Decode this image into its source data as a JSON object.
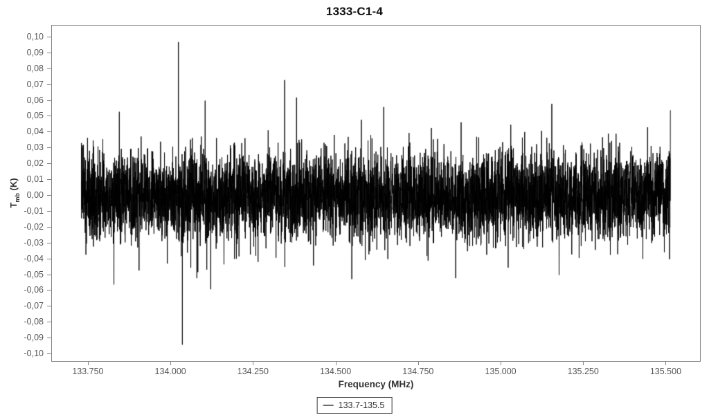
{
  "chart_data": {
    "type": "line",
    "title": "1333-C1-4",
    "xlabel": "Frequency (MHz)",
    "ylabel": {
      "main": "T",
      "sub": "mb",
      "unit": " (K)"
    },
    "legend": {
      "label": "133.7-135.5",
      "position": "bottom-center"
    },
    "series": [
      {
        "name": "133.7-135.5",
        "color": "#000000",
        "kind": "noise-spectrum"
      }
    ],
    "xlim": [
      133.639,
      135.606
    ],
    "ylim": [
      -0.1052,
      0.1074
    ],
    "x_range_data": [
      133.728,
      135.512
    ],
    "x_tick_values": [
      133.75,
      134.0,
      134.25,
      134.5,
      134.75,
      135.0,
      135.25,
      135.5
    ],
    "x_tick_labels": [
      "133.750",
      "134.000",
      "134.250",
      "134.500",
      "134.750",
      "135.000",
      "135.250",
      "135.500"
    ],
    "y_tick_values": [
      0.1,
      0.09,
      0.08,
      0.07,
      0.06,
      0.05,
      0.04,
      0.03,
      0.02,
      0.01,
      0.0,
      -0.01,
      -0.02,
      -0.03,
      -0.04,
      -0.05,
      -0.06,
      -0.07,
      -0.08,
      -0.09,
      -0.1
    ],
    "y_tick_labels": [
      "0,10",
      "0,09",
      "0,08",
      "0,07",
      "0,06",
      "0,05",
      "0,04",
      "0,03",
      "0,02",
      "0,01",
      "0,00",
      "-0,01",
      "-0,02",
      "-0,03",
      "-0,04",
      "-0,05",
      "-0,06",
      "-0,07",
      "-0,08",
      "-0,09",
      "-0,10"
    ],
    "grid": false,
    "background": "#ffffff",
    "axis_color": "#848484",
    "tick_label_color": "#555555",
    "noise": {
      "mean": 0.0,
      "sigma": 0.0138,
      "clamp": 0.056,
      "n_points": 6000,
      "seed": 1333,
      "description": "white-noise band, dense core about +/-0.03 K, excursions to +/-0.055 K"
    },
    "notable_spikes": [
      {
        "x": 133.843,
        "y": 0.053
      },
      {
        "x": 134.022,
        "y": 0.097
      },
      {
        "x": 134.034,
        "y": -0.094
      },
      {
        "x": 134.078,
        "y": -0.052
      },
      {
        "x": 134.103,
        "y": 0.06
      },
      {
        "x": 134.12,
        "y": -0.059
      },
      {
        "x": 134.344,
        "y": 0.073
      },
      {
        "x": 134.38,
        "y": 0.062
      },
      {
        "x": 134.644,
        "y": 0.056
      },
      {
        "x": 134.862,
        "y": -0.052
      },
      {
        "x": 135.153,
        "y": 0.058
      },
      {
        "x": 135.175,
        "y": -0.05
      },
      {
        "x": 135.512,
        "y": 0.054
      }
    ]
  }
}
